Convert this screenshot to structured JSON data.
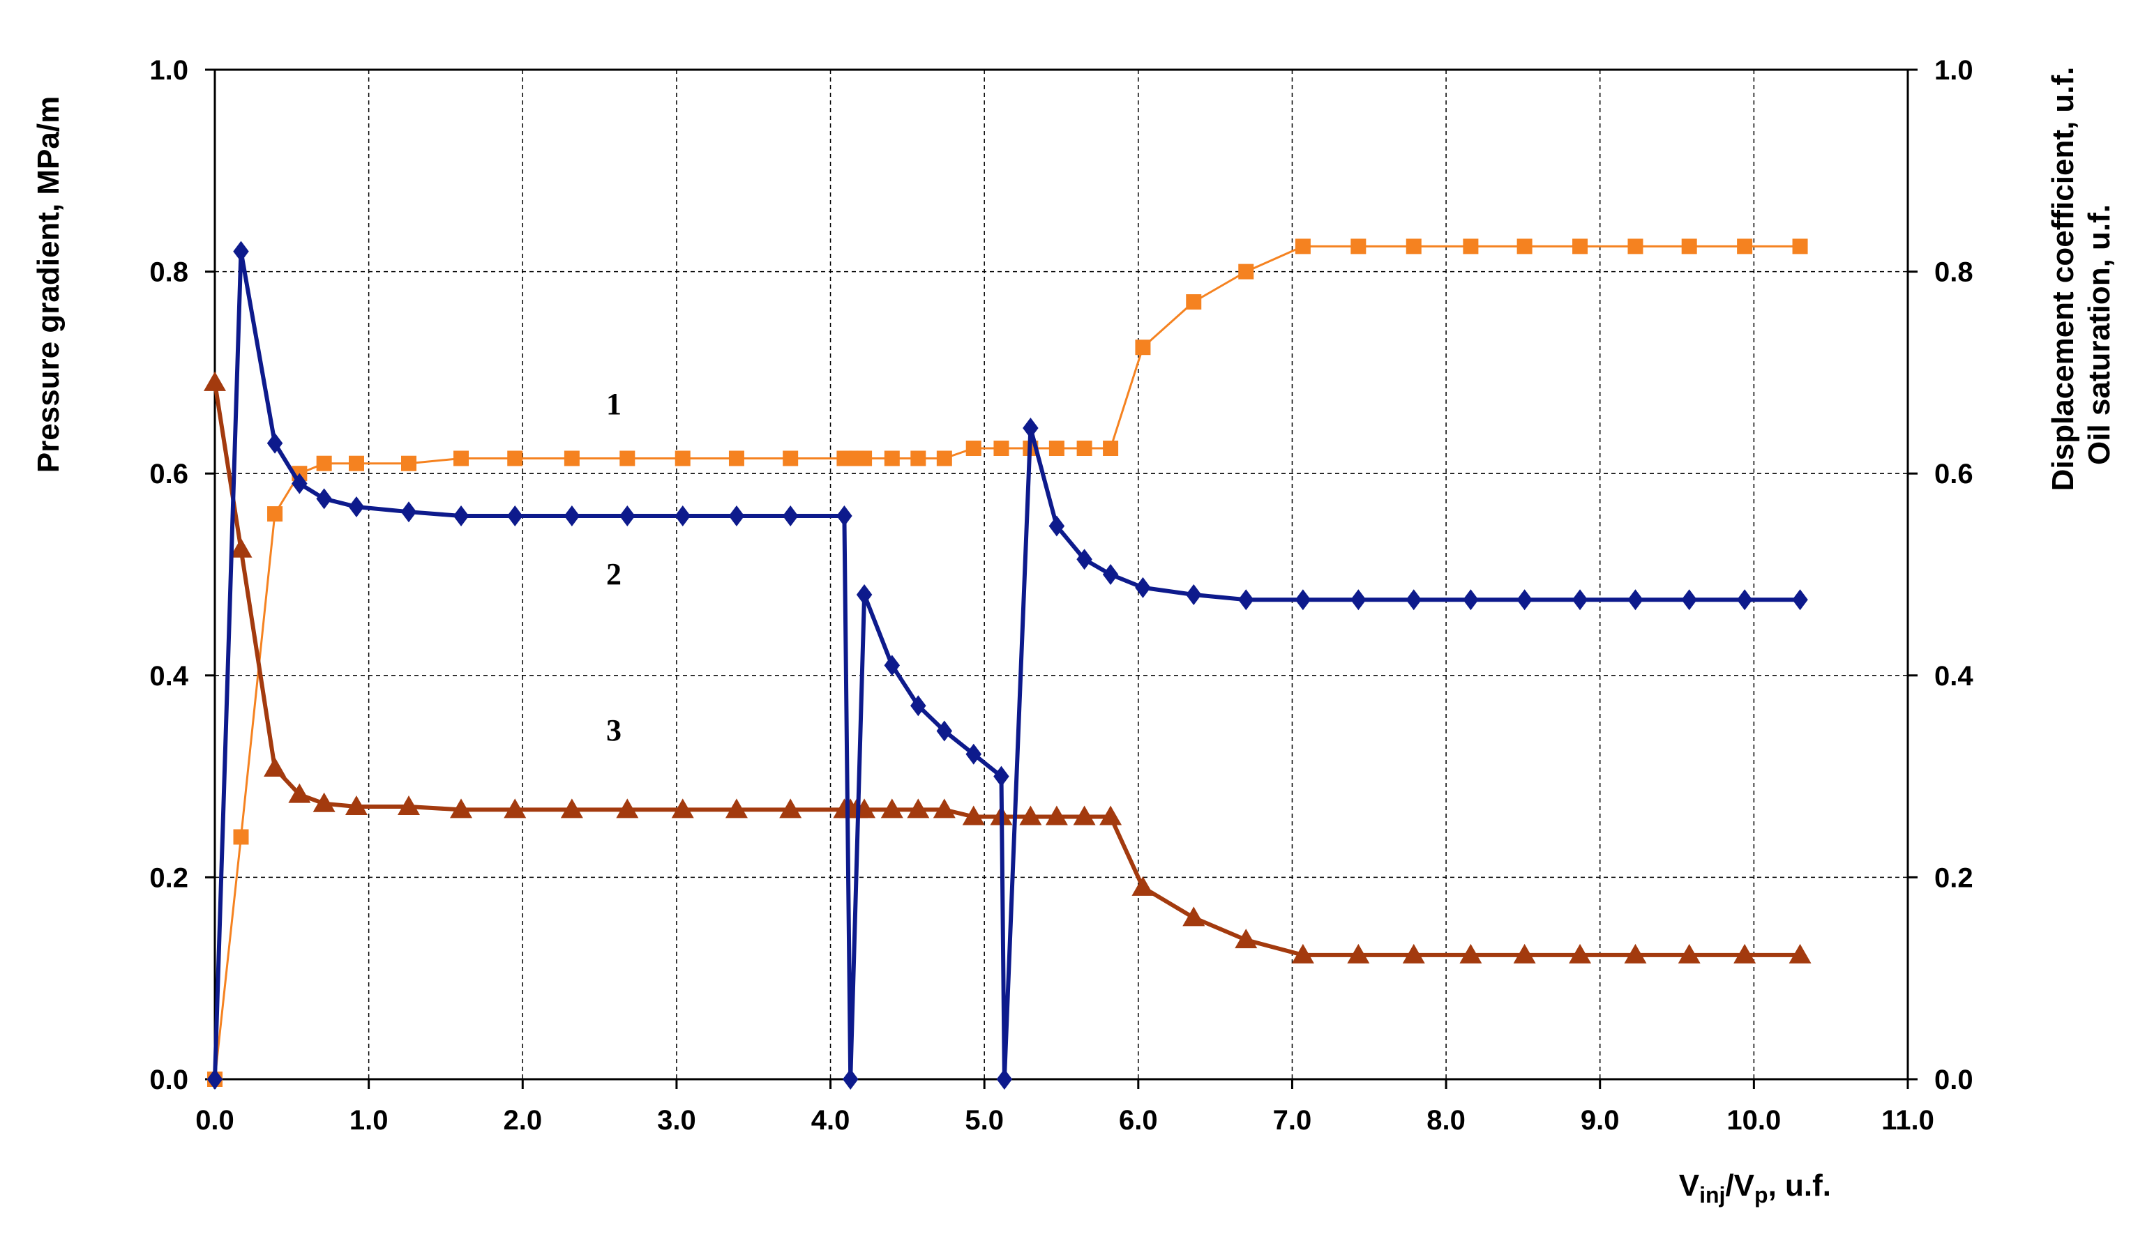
{
  "chart_data": {
    "type": "line",
    "xlabel": {
      "base": "V",
      "sub1": "inj",
      "mid": "/V",
      "sub2": "p",
      "tail": ", u.f."
    },
    "ylabel_left": "Pressure gradient, MPa/m",
    "ylabel_right": [
      "Displacement coefficient, u.f.",
      "Oil saturation, u.f."
    ],
    "xlim": [
      0,
      11
    ],
    "ylim": [
      0,
      1
    ],
    "y2lim": [
      0,
      1
    ],
    "grid": true,
    "x_ticks": [
      "0.0",
      "1.0",
      "2.0",
      "3.0",
      "4.0",
      "5.0",
      "6.0",
      "7.0",
      "8.0",
      "9.0",
      "10.0",
      "11.0"
    ],
    "y_ticks": [
      "0.0",
      "0.2",
      "0.4",
      "0.6",
      "0.8",
      "1.0"
    ],
    "y2_ticks": [
      "0.0",
      "0.2",
      "0.4",
      "0.6",
      "0.8",
      "1.0"
    ],
    "curve_labels": [
      {
        "text": "1",
        "series": 0
      },
      {
        "text": "2",
        "series": 1
      },
      {
        "text": "3",
        "series": 2
      }
    ],
    "series": [
      {
        "marker": "square",
        "color": "#F58220",
        "axis": "right",
        "label": "1",
        "x": [
          0.0,
          0.17,
          0.39,
          0.55,
          0.71,
          0.92,
          1.26,
          1.6,
          1.95,
          2.32,
          2.68,
          3.04,
          3.39,
          3.74,
          4.09,
          4.13,
          4.17,
          4.22,
          4.4,
          4.57,
          4.74,
          4.93,
          5.11,
          5.3,
          5.47,
          5.65,
          5.82,
          6.03,
          6.36,
          6.7,
          7.07,
          7.43,
          7.79,
          8.16,
          8.51,
          8.87,
          9.23,
          9.58,
          9.94,
          10.3
        ],
        "y": [
          0.0,
          0.24,
          0.56,
          0.6,
          0.61,
          0.61,
          0.61,
          0.615,
          0.615,
          0.615,
          0.615,
          0.615,
          0.615,
          0.615,
          0.615,
          0.615,
          0.615,
          0.615,
          0.615,
          0.615,
          0.615,
          0.625,
          0.625,
          0.625,
          0.625,
          0.625,
          0.625,
          0.725,
          0.77,
          0.8,
          0.825,
          0.825,
          0.825,
          0.825,
          0.825,
          0.825,
          0.825,
          0.825,
          0.825,
          0.825
        ]
      },
      {
        "marker": "diamond",
        "color": "#0D1A8C",
        "axis": "left",
        "label": "2",
        "x": [
          0.0,
          0.17,
          0.39,
          0.55,
          0.71,
          0.92,
          1.26,
          1.6,
          1.95,
          2.32,
          2.68,
          3.04,
          3.39,
          3.74,
          4.09,
          4.13,
          4.22,
          4.4,
          4.57,
          4.74,
          4.93,
          5.11,
          5.13,
          5.3,
          5.47,
          5.65,
          5.82,
          6.03,
          6.36,
          6.7,
          7.07,
          7.43,
          7.79,
          8.16,
          8.51,
          8.87,
          9.23,
          9.58,
          9.94,
          10.3
        ],
        "y": [
          0.0,
          0.82,
          0.63,
          0.59,
          0.575,
          0.567,
          0.562,
          0.558,
          0.558,
          0.558,
          0.558,
          0.558,
          0.558,
          0.558,
          0.558,
          0.0,
          0.48,
          0.41,
          0.37,
          0.345,
          0.322,
          0.3,
          0.0,
          0.645,
          0.548,
          0.515,
          0.5,
          0.487,
          0.48,
          0.475,
          0.475,
          0.475,
          0.475,
          0.475,
          0.475,
          0.475,
          0.475,
          0.475,
          0.475,
          0.475
        ]
      },
      {
        "marker": "triangle",
        "color": "#A33A0E",
        "axis": "right",
        "label": "3",
        "x": [
          0.0,
          0.17,
          0.39,
          0.55,
          0.71,
          0.92,
          1.26,
          1.6,
          1.95,
          2.32,
          2.68,
          3.04,
          3.39,
          3.74,
          4.09,
          4.13,
          4.17,
          4.22,
          4.4,
          4.57,
          4.74,
          4.93,
          5.11,
          5.3,
          5.47,
          5.65,
          5.82,
          6.03,
          6.36,
          6.7,
          7.07,
          7.43,
          7.79,
          8.16,
          8.51,
          8.87,
          9.23,
          9.58,
          9.94,
          10.3
        ],
        "y": [
          0.69,
          0.525,
          0.308,
          0.282,
          0.273,
          0.27,
          0.27,
          0.267,
          0.267,
          0.267,
          0.267,
          0.267,
          0.267,
          0.267,
          0.267,
          0.267,
          0.267,
          0.267,
          0.267,
          0.267,
          0.267,
          0.26,
          0.26,
          0.26,
          0.26,
          0.26,
          0.26,
          0.19,
          0.16,
          0.138,
          0.123,
          0.123,
          0.123,
          0.123,
          0.123,
          0.123,
          0.123,
          0.123,
          0.123,
          0.123
        ]
      }
    ]
  }
}
